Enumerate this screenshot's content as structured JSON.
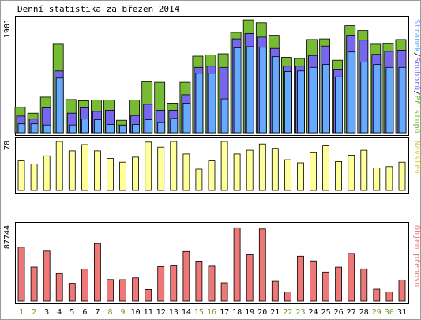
{
  "chart_data": {
    "title": "Denní statistika za březen 2014",
    "days": [
      "1",
      "2",
      "3",
      "4",
      "5",
      "6",
      "7",
      "8",
      "9",
      "10",
      "11",
      "12",
      "13",
      "14",
      "15",
      "16",
      "17",
      "18",
      "19",
      "20",
      "21",
      "22",
      "23",
      "24",
      "25",
      "26",
      "27",
      "28",
      "29",
      "30",
      "31"
    ],
    "weekend_days": [
      "1",
      "2",
      "8",
      "9",
      "15",
      "16",
      "22",
      "23",
      "29",
      "30"
    ],
    "panels": [
      {
        "type": "bar",
        "max_label": "1901",
        "ymax": 1901,
        "legend": [
          "Stránek",
          "Souborů",
          "Přístupů"
        ],
        "legend_colors": [
          "#66aaff",
          "#7766ee",
          "#66bb33"
        ],
        "series": [
          {
            "name": "Přístupů",
            "color": "#77bb33",
            "values": [
              430,
              330,
              600,
              1490,
              560,
              540,
              550,
              550,
              210,
              550,
              860,
              850,
              500,
              850,
              1290,
              1310,
              1330,
              1690,
              1900,
              1850,
              1640,
              1270,
              1250,
              1570,
              1580,
              1220,
              1800,
              1720,
              1490,
              1500,
              1570
            ]
          },
          {
            "name": "Souborů",
            "color": "#7766ee",
            "values": [
              280,
              230,
              420,
              1040,
              330,
              420,
              360,
              380,
              130,
              290,
              480,
              380,
              380,
              640,
              1100,
              1120,
              1100,
              1580,
              1670,
              1610,
              1420,
              1120,
              1120,
              1300,
              1460,
              1070,
              1640,
              1560,
              1320,
              1370,
              1390
            ]
          },
          {
            "name": "Stránek",
            "color": "#66aaff",
            "values": [
              150,
              150,
              130,
              920,
              130,
              230,
              220,
              140,
              110,
              140,
              220,
              170,
              240,
              500,
              1000,
              1000,
              570,
              1430,
              1450,
              1440,
              1280,
              1030,
              1040,
              1100,
              1150,
              940,
              1360,
              1190,
              1150,
              1100,
              1100
            ]
          }
        ]
      },
      {
        "type": "bar",
        "max_label": "78",
        "ymax": 78,
        "legend": [
          "Návštěv"
        ],
        "legend_colors": [
          "#cccc33"
        ],
        "series": [
          {
            "name": "Návštěv",
            "color": "#ffff99",
            "values": [
              47,
              42,
              55,
              78,
              63,
              73,
              63,
              51,
              45,
              53,
              77,
              69,
              78,
              58,
              34,
              47,
              78,
              58,
              64,
              74,
              67,
              49,
              44,
              60,
              71,
              46,
              56,
              64,
              36,
              38,
              45
            ]
          }
        ]
      },
      {
        "type": "bar",
        "max_label": "87744",
        "ymax": 87744,
        "legend": [
          "Objem přenosu"
        ],
        "legend_colors": [
          "#ee7777"
        ],
        "series": [
          {
            "name": "Objem přenosu",
            "color": "#ee7777",
            "values": [
              63000,
              39700,
              58400,
              32100,
              20700,
              37300,
              67300,
              25100,
              24900,
              27000,
              13500,
              40200,
              41100,
              57900,
              46700,
              40700,
              21200,
              85600,
              54000,
              84200,
              23000,
              10700,
              52400,
              46900,
              33900,
              39600,
              55500,
              37600,
              13900,
              10500,
              24400
            ]
          }
        ]
      }
    ]
  }
}
